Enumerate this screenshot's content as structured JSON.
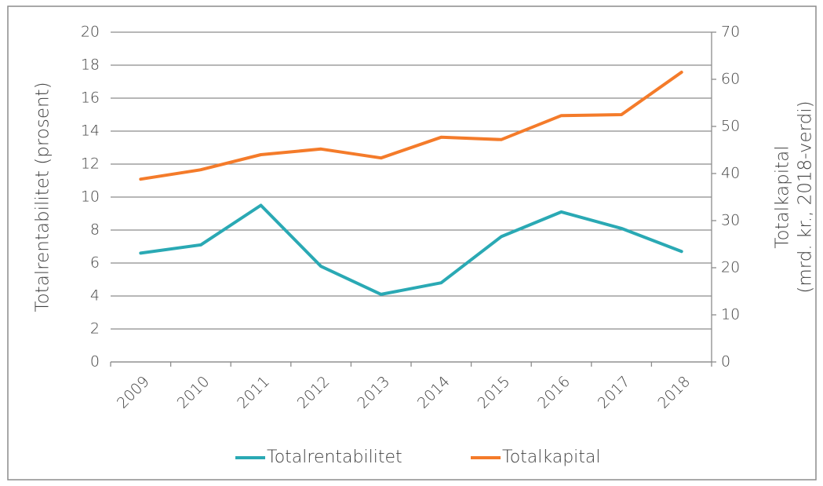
{
  "chart_data": {
    "type": "line",
    "categories": [
      "2009",
      "2010",
      "2011",
      "2012",
      "2013",
      "2014",
      "2015",
      "2016",
      "2017",
      "2018"
    ],
    "series": [
      {
        "name": "Totalrentabilitet",
        "color": "#2aa9b4",
        "values": [
          6.6,
          7.1,
          9.5,
          5.8,
          4.1,
          4.8,
          7.6,
          9.1,
          8.1,
          6.7
        ]
      },
      {
        "name": "Totalkapital",
        "color": "#f47b2a",
        "axis": "y2",
        "values": [
          38.8,
          40.8,
          44.0,
          45.2,
          43.3,
          47.7,
          47.2,
          52.3,
          52.5,
          61.5
        ]
      }
    ],
    "ylabel": "Totalrentabilitet (prosent)",
    "y2label": [
      "Totalkapital",
      "(mrd. kr., 2018-verdi)"
    ],
    "ylim": [
      0,
      20
    ],
    "yticks": [
      0,
      2,
      4,
      6,
      8,
      10,
      12,
      14,
      16,
      18,
      20
    ],
    "y2lim": [
      0,
      70
    ],
    "y2ticks": [
      0,
      10,
      20,
      30,
      40,
      50,
      60,
      70
    ],
    "grid": true,
    "legend": "bottom"
  }
}
